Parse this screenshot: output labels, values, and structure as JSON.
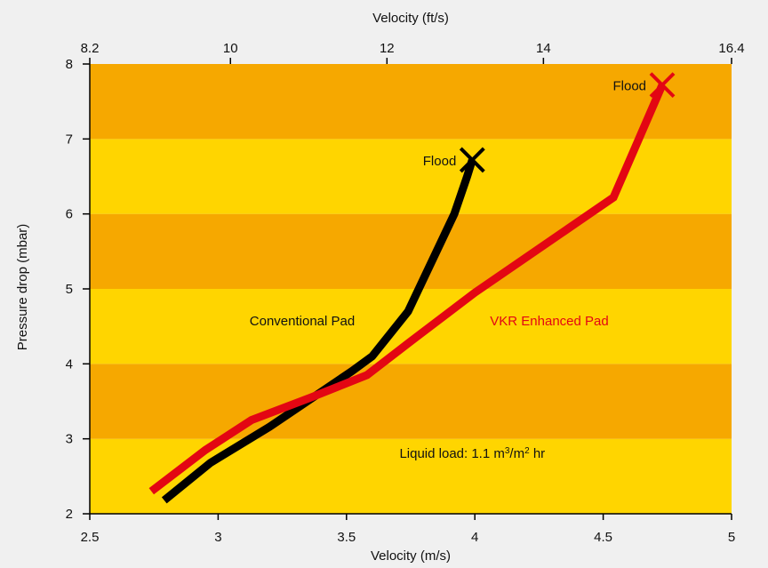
{
  "chart_data": {
    "type": "line",
    "top_axis": {
      "label": "Velocity (ft/s)",
      "ticks": [
        {
          "label": "8.2",
          "value_ms": 2.5
        },
        {
          "label": "10",
          "value_ms": 3.048
        },
        {
          "label": "12",
          "value_ms": 3.6576
        },
        {
          "label": "14",
          "value_ms": 4.2672
        },
        {
          "label": "16.4",
          "value_ms": 5.0
        }
      ]
    },
    "x_axis": {
      "label": "Velocity (m/s)",
      "ticks": [
        "2.5",
        "3",
        "3.5",
        "4",
        "4.5",
        "5"
      ],
      "lim": [
        2.5,
        5
      ]
    },
    "y_axis": {
      "label": "Pressure drop (mbar)",
      "ticks": [
        "2",
        "3",
        "4",
        "5",
        "6",
        "7",
        "8"
      ],
      "lim": [
        2,
        8
      ]
    },
    "bands": [
      {
        "from": 2,
        "to": 3,
        "color": "#ffd500"
      },
      {
        "from": 3,
        "to": 4,
        "color": "#f6a800"
      },
      {
        "from": 4,
        "to": 5,
        "color": "#ffd500"
      },
      {
        "from": 5,
        "to": 6,
        "color": "#f6a800"
      },
      {
        "from": 6,
        "to": 7,
        "color": "#ffd500"
      },
      {
        "from": 7,
        "to": 8,
        "color": "#f6a800"
      }
    ],
    "series": [
      {
        "name": "Conventional Pad",
        "color": "#000000",
        "x": [
          2.79,
          2.97,
          3.2,
          3.52,
          3.6,
          3.74,
          3.92,
          3.97,
          3.99
        ],
        "y": [
          2.18,
          2.68,
          3.16,
          3.9,
          4.1,
          4.7,
          6.0,
          6.5,
          6.72
        ],
        "end_marker": {
          "label": "Flood",
          "x": 3.99,
          "y": 6.72
        }
      },
      {
        "name": "VKR Enhanced Pad",
        "color": "#e30613",
        "x": [
          2.74,
          2.95,
          3.13,
          3.36,
          3.58,
          3.75,
          4.0,
          4.54,
          4.73
        ],
        "y": [
          2.3,
          2.85,
          3.25,
          3.55,
          3.85,
          4.3,
          4.95,
          6.22,
          7.72
        ],
        "end_marker": {
          "label": "Flood",
          "x": 4.73,
          "y": 7.72
        }
      }
    ],
    "annotation": {
      "prefix": "Liquid load: 1.1 m",
      "sup1": "3",
      "mid": "/m",
      "sup2": "2",
      "suffix": " hr",
      "x": 3.99,
      "y": 2.75
    }
  }
}
